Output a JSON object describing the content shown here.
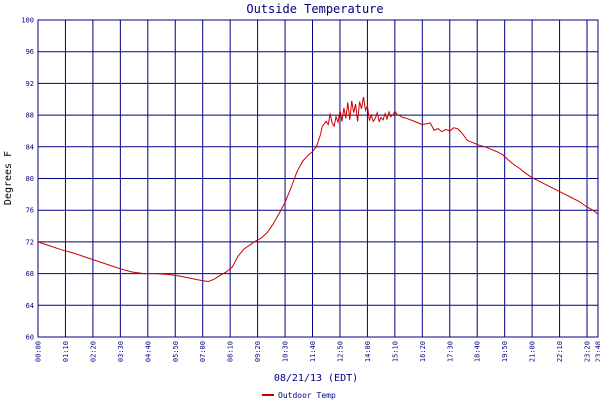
{
  "chart_data": {
    "type": "line",
    "title": "Outside Temperature",
    "xlabel": "08/21/13 (EDT)",
    "ylabel": "Degrees F",
    "ylim": [
      60,
      100
    ],
    "y_ticks": [
      "100",
      "96",
      "92",
      "88",
      "84",
      "80",
      "76",
      "72",
      "68",
      "64",
      "60"
    ],
    "x_ticks": [
      "00:00",
      "01:10",
      "02:20",
      "03:30",
      "04:40",
      "05:50",
      "07:00",
      "08:10",
      "09:20",
      "10:30",
      "11:40",
      "12:50",
      "14:00",
      "15:10",
      "16:20",
      "17:30",
      "18:40",
      "19:50",
      "21:00",
      "22:10",
      "23:20",
      "23:48"
    ],
    "grid": true,
    "legend_position": "bottom-left",
    "series": [
      {
        "name": "Outdoor Temp",
        "color": "#cc0000",
        "points": [
          [
            "00:00",
            72.0
          ],
          [
            "00:30",
            71.5
          ],
          [
            "01:00",
            71.0
          ],
          [
            "01:30",
            70.6
          ],
          [
            "02:00",
            70.1
          ],
          [
            "02:30",
            69.6
          ],
          [
            "03:00",
            69.1
          ],
          [
            "03:30",
            68.6
          ],
          [
            "04:00",
            68.2
          ],
          [
            "04:30",
            68.0
          ],
          [
            "05:00",
            68.0
          ],
          [
            "05:30",
            67.9
          ],
          [
            "06:00",
            67.7
          ],
          [
            "06:30",
            67.4
          ],
          [
            "07:00",
            67.1
          ],
          [
            "07:15",
            67.0
          ],
          [
            "07:30",
            67.3
          ],
          [
            "07:45",
            67.8
          ],
          [
            "08:00",
            68.2
          ],
          [
            "08:15",
            68.8
          ],
          [
            "08:30",
            70.2
          ],
          [
            "08:45",
            71.1
          ],
          [
            "09:00",
            71.6
          ],
          [
            "09:15",
            72.1
          ],
          [
            "09:30",
            72.5
          ],
          [
            "09:45",
            73.2
          ],
          [
            "10:00",
            74.3
          ],
          [
            "10:15",
            75.6
          ],
          [
            "10:30",
            77.0
          ],
          [
            "10:45",
            78.8
          ],
          [
            "11:00",
            80.8
          ],
          [
            "11:15",
            82.2
          ],
          [
            "11:30",
            83.0
          ],
          [
            "11:40",
            83.4
          ],
          [
            "11:50",
            84.0
          ],
          [
            "12:00",
            85.5
          ],
          [
            "12:05",
            86.6
          ],
          [
            "12:10",
            86.9
          ],
          [
            "12:15",
            87.2
          ],
          [
            "12:20",
            86.8
          ],
          [
            "12:25",
            88.2
          ],
          [
            "12:30",
            87.0
          ],
          [
            "12:35",
            86.6
          ],
          [
            "12:40",
            87.8
          ],
          [
            "12:45",
            87.1
          ],
          [
            "12:50",
            88.6
          ],
          [
            "12:55",
            87.2
          ],
          [
            "13:00",
            88.9
          ],
          [
            "13:05",
            87.6
          ],
          [
            "13:10",
            89.6
          ],
          [
            "13:15",
            87.4
          ],
          [
            "13:20",
            89.8
          ],
          [
            "13:25",
            88.3
          ],
          [
            "13:30",
            89.4
          ],
          [
            "13:35",
            87.2
          ],
          [
            "13:40",
            89.7
          ],
          [
            "13:45",
            88.8
          ],
          [
            "13:50",
            90.3
          ],
          [
            "13:55",
            88.6
          ],
          [
            "14:00",
            89.2
          ],
          [
            "14:05",
            87.3
          ],
          [
            "14:10",
            88.0
          ],
          [
            "14:15",
            87.2
          ],
          [
            "14:20",
            87.6
          ],
          [
            "14:25",
            88.3
          ],
          [
            "14:30",
            87.2
          ],
          [
            "14:35",
            87.7
          ],
          [
            "14:40",
            87.4
          ],
          [
            "14:45",
            88.2
          ],
          [
            "14:50",
            87.5
          ],
          [
            "14:55",
            88.4
          ],
          [
            "15:00",
            87.8
          ],
          [
            "15:05",
            88.0
          ],
          [
            "15:10",
            88.5
          ],
          [
            "15:15",
            88.1
          ],
          [
            "15:20",
            88.0
          ],
          [
            "15:30",
            87.7
          ],
          [
            "15:40",
            87.6
          ],
          [
            "15:50",
            87.4
          ],
          [
            "16:00",
            87.2
          ],
          [
            "16:10",
            87.0
          ],
          [
            "16:20",
            86.8
          ],
          [
            "16:30",
            86.9
          ],
          [
            "16:40",
            87.0
          ],
          [
            "16:50",
            86.1
          ],
          [
            "17:00",
            86.3
          ],
          [
            "17:10",
            85.9
          ],
          [
            "17:20",
            86.2
          ],
          [
            "17:30",
            86.0
          ],
          [
            "17:40",
            86.4
          ],
          [
            "17:50",
            86.3
          ],
          [
            "18:00",
            85.8
          ],
          [
            "18:15",
            84.8
          ],
          [
            "18:30",
            84.5
          ],
          [
            "18:45",
            84.2
          ],
          [
            "19:00",
            84.0
          ],
          [
            "19:15",
            83.7
          ],
          [
            "19:30",
            83.4
          ],
          [
            "19:45",
            83.0
          ],
          [
            "20:00",
            82.3
          ],
          [
            "20:15",
            81.7
          ],
          [
            "20:30",
            81.2
          ],
          [
            "20:45",
            80.6
          ],
          [
            "21:00",
            80.1
          ],
          [
            "21:20",
            79.6
          ],
          [
            "21:40",
            79.1
          ],
          [
            "22:00",
            78.6
          ],
          [
            "22:20",
            78.1
          ],
          [
            "22:40",
            77.6
          ],
          [
            "23:00",
            77.1
          ],
          [
            "23:20",
            76.4
          ],
          [
            "23:35",
            76.0
          ],
          [
            "23:48",
            75.5
          ]
        ]
      }
    ]
  }
}
